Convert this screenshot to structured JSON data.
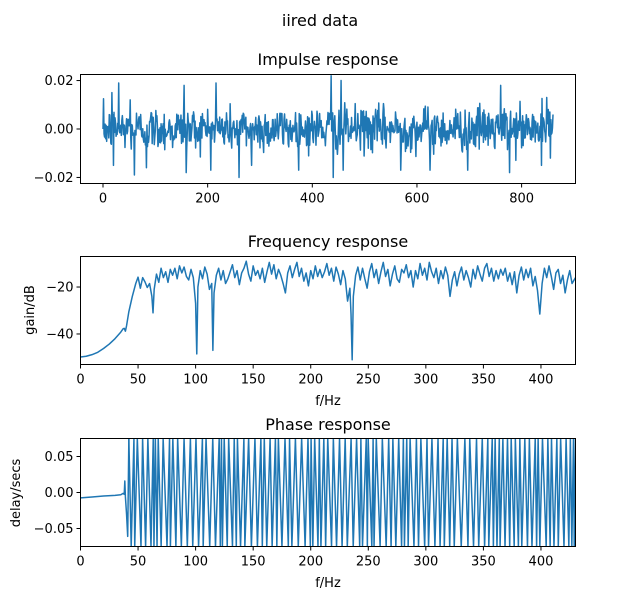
{
  "figure": {
    "suptitle": "iired data"
  },
  "colors": {
    "series": "#1f77b4",
    "axes": "#000000",
    "background": "#ffffff"
  },
  "chart_data": [
    {
      "type": "line",
      "title": "Impulse response",
      "xlabel": "",
      "ylabel": "",
      "xlim": [
        -43,
        903
      ],
      "ylim": [
        -0.0225,
        0.0225
      ],
      "xticks": [
        0,
        200,
        400,
        600,
        800
      ],
      "xtick_labels": [
        "0",
        "200",
        "400",
        "600",
        "800"
      ],
      "yticks": [
        0.02,
        0.0,
        -0.02
      ],
      "ytick_labels": [
        "0.02",
        "0.00",
        "−0.02"
      ],
      "grid": false,
      "x_range": [
        0,
        860
      ],
      "peak_points": [
        [
          0,
          0.0
        ],
        [
          2,
          -0.002
        ],
        [
          4,
          0.002
        ],
        [
          5,
          -0.004
        ],
        [
          17,
          0.015
        ],
        [
          20,
          -0.015
        ],
        [
          30,
          0.019
        ],
        [
          52,
          0.012
        ],
        [
          60,
          -0.019
        ],
        [
          83,
          -0.016
        ],
        [
          155,
          0.018
        ],
        [
          159,
          -0.018
        ],
        [
          216,
          0.019
        ],
        [
          260,
          -0.02
        ],
        [
          284,
          -0.015
        ],
        [
          436,
          0.022
        ],
        [
          440,
          -0.02
        ],
        [
          455,
          0.02
        ],
        [
          459,
          -0.017
        ],
        [
          569,
          -0.017
        ],
        [
          625,
          -0.017
        ],
        [
          697,
          -0.017
        ],
        [
          760,
          0.018
        ],
        [
          777,
          -0.018
        ],
        [
          838,
          -0.015
        ],
        [
          848,
          0.013
        ],
        [
          855,
          -0.012
        ],
        [
          860,
          0.006
        ]
      ],
      "typical_amplitude": 0.0045
    },
    {
      "type": "line",
      "title": "Frequency response",
      "xlabel": "f/Hz",
      "ylabel": "gain/dB",
      "xlim": [
        0,
        430
      ],
      "ylim": [
        -53,
        -7
      ],
      "xticks": [
        0,
        50,
        100,
        150,
        200,
        250,
        300,
        350,
        400
      ],
      "xtick_labels": [
        "0",
        "50",
        "100",
        "150",
        "200",
        "250",
        "300",
        "350",
        "400"
      ],
      "yticks": [
        -20,
        -40
      ],
      "ytick_labels": [
        "−20",
        "−40"
      ],
      "grid": false,
      "points": [
        [
          0,
          -49.8
        ],
        [
          5,
          -49.5
        ],
        [
          10,
          -48.8
        ],
        [
          15,
          -47.8
        ],
        [
          20,
          -46.2
        ],
        [
          25,
          -44.3
        ],
        [
          30,
          -42.0
        ],
        [
          35,
          -39.2
        ],
        [
          37,
          -37.8
        ],
        [
          38,
          -37.6
        ],
        [
          39,
          -38.8
        ],
        [
          40,
          -36.5
        ],
        [
          42,
          -30.5
        ],
        [
          45,
          -24.0
        ],
        [
          48,
          -18.5
        ],
        [
          50,
          -15.8
        ],
        [
          52,
          -20.5
        ],
        [
          54,
          -16.0
        ],
        [
          56,
          -17.8
        ],
        [
          58,
          -20.2
        ],
        [
          60,
          -18.5
        ],
        [
          62,
          -24.0
        ],
        [
          63,
          -31.0
        ],
        [
          64,
          -21.0
        ],
        [
          66,
          -14.5
        ],
        [
          68,
          -18.0
        ],
        [
          70,
          -12.0
        ],
        [
          72,
          -16.0
        ],
        [
          74,
          -13.5
        ],
        [
          76,
          -18.0
        ],
        [
          78,
          -12.5
        ],
        [
          80,
          -15.0
        ],
        [
          82,
          -12.0
        ],
        [
          84,
          -16.5
        ],
        [
          86,
          -11.0
        ],
        [
          88,
          -14.0
        ],
        [
          90,
          -11.5
        ],
        [
          92,
          -15.5
        ],
        [
          94,
          -17.0
        ],
        [
          96,
          -12.5
        ],
        [
          98,
          -16.0
        ],
        [
          100,
          -27.0
        ],
        [
          101,
          -48.5
        ],
        [
          102,
          -20.0
        ],
        [
          104,
          -13.0
        ],
        [
          106,
          -16.5
        ],
        [
          108,
          -11.5
        ],
        [
          110,
          -14.5
        ],
        [
          112,
          -21.0
        ],
        [
          114,
          -18.5
        ],
        [
          115,
          -47.0
        ],
        [
          116,
          -22.5
        ],
        [
          118,
          -15.0
        ],
        [
          120,
          -12.0
        ],
        [
          122,
          -17.0
        ],
        [
          124,
          -13.0
        ],
        [
          126,
          -18.5
        ],
        [
          128,
          -16.5
        ],
        [
          130,
          -13.5
        ],
        [
          132,
          -10.5
        ],
        [
          134,
          -16.0
        ],
        [
          136,
          -13.0
        ],
        [
          138,
          -19.0
        ],
        [
          140,
          -14.0
        ],
        [
          142,
          -12.0
        ],
        [
          144,
          -9.0
        ],
        [
          146,
          -14.5
        ],
        [
          148,
          -17.5
        ],
        [
          150,
          -11.0
        ],
        [
          152,
          -15.0
        ],
        [
          154,
          -13.0
        ],
        [
          156,
          -16.5
        ],
        [
          158,
          -12.0
        ],
        [
          160,
          -18.0
        ],
        [
          162,
          -13.5
        ],
        [
          164,
          -9.5
        ],
        [
          166,
          -14.5
        ],
        [
          168,
          -10.5
        ],
        [
          170,
          -16.5
        ],
        [
          172,
          -12.5
        ],
        [
          174,
          -15.0
        ],
        [
          176,
          -18.5
        ],
        [
          178,
          -22.5
        ],
        [
          180,
          -14.0
        ],
        [
          182,
          -11.0
        ],
        [
          184,
          -16.0
        ],
        [
          186,
          -12.5
        ],
        [
          188,
          -9.5
        ],
        [
          190,
          -15.5
        ],
        [
          192,
          -12.0
        ],
        [
          194,
          -17.5
        ],
        [
          196,
          -14.0
        ],
        [
          198,
          -19.5
        ],
        [
          200,
          -13.0
        ],
        [
          202,
          -16.5
        ],
        [
          204,
          -11.0
        ],
        [
          206,
          -15.5
        ],
        [
          208,
          -12.5
        ],
        [
          210,
          -16.0
        ],
        [
          212,
          -13.5
        ],
        [
          214,
          -10.0
        ],
        [
          216,
          -15.0
        ],
        [
          218,
          -12.0
        ],
        [
          220,
          -17.5
        ],
        [
          222,
          -11.5
        ],
        [
          224,
          -14.5
        ],
        [
          226,
          -19.0
        ],
        [
          228,
          -13.0
        ],
        [
          230,
          -16.5
        ],
        [
          232,
          -26.0
        ],
        [
          234,
          -20.5
        ],
        [
          235,
          -31.5
        ],
        [
          236,
          -51.0
        ],
        [
          237,
          -24.0
        ],
        [
          239,
          -15.0
        ],
        [
          241,
          -11.5
        ],
        [
          243,
          -17.0
        ],
        [
          245,
          -12.0
        ],
        [
          247,
          -16.5
        ],
        [
          249,
          -20.5
        ],
        [
          251,
          -13.5
        ],
        [
          253,
          -10.0
        ],
        [
          255,
          -16.0
        ],
        [
          257,
          -12.5
        ],
        [
          259,
          -18.5
        ],
        [
          261,
          -13.5
        ],
        [
          263,
          -9.5
        ],
        [
          265,
          -15.5
        ],
        [
          267,
          -12.5
        ],
        [
          269,
          -19.5
        ],
        [
          271,
          -14.5
        ],
        [
          273,
          -11.0
        ],
        [
          275,
          -16.5
        ],
        [
          277,
          -18.0
        ],
        [
          279,
          -12.5
        ],
        [
          281,
          -14.0
        ],
        [
          283,
          -10.5
        ],
        [
          285,
          -16.0
        ],
        [
          287,
          -13.0
        ],
        [
          289,
          -20.0
        ],
        [
          291,
          -13.0
        ],
        [
          293,
          -16.5
        ],
        [
          295,
          -10.0
        ],
        [
          297,
          -15.0
        ],
        [
          299,
          -12.0
        ],
        [
          301,
          -17.0
        ],
        [
          303,
          -9.5
        ],
        [
          305,
          -13.5
        ],
        [
          307,
          -16.0
        ],
        [
          309,
          -12.0
        ],
        [
          311,
          -18.5
        ],
        [
          313,
          -13.0
        ],
        [
          315,
          -16.5
        ],
        [
          317,
          -11.5
        ],
        [
          319,
          -15.0
        ],
        [
          321,
          -24.0
        ],
        [
          323,
          -17.0
        ],
        [
          325,
          -13.5
        ],
        [
          327,
          -19.5
        ],
        [
          329,
          -14.5
        ],
        [
          331,
          -11.5
        ],
        [
          333,
          -17.0
        ],
        [
          335,
          -13.0
        ],
        [
          337,
          -16.0
        ],
        [
          339,
          -20.0
        ],
        [
          341,
          -12.5
        ],
        [
          343,
          -16.5
        ],
        [
          345,
          -11.0
        ],
        [
          347,
          -14.5
        ],
        [
          349,
          -17.5
        ],
        [
          351,
          -12.0
        ],
        [
          353,
          -10.0
        ],
        [
          355,
          -15.5
        ],
        [
          357,
          -12.0
        ],
        [
          359,
          -17.5
        ],
        [
          361,
          -13.0
        ],
        [
          363,
          -16.5
        ],
        [
          365,
          -12.5
        ],
        [
          367,
          -15.0
        ],
        [
          369,
          -12.0
        ],
        [
          371,
          -17.5
        ],
        [
          373,
          -14.0
        ],
        [
          375,
          -19.0
        ],
        [
          377,
          -13.5
        ],
        [
          379,
          -22.5
        ],
        [
          381,
          -15.0
        ],
        [
          383,
          -11.5
        ],
        [
          385,
          -17.0
        ],
        [
          387,
          -12.5
        ],
        [
          389,
          -16.0
        ],
        [
          391,
          -12.0
        ],
        [
          393,
          -19.5
        ],
        [
          395,
          -15.5
        ],
        [
          397,
          -21.5
        ],
        [
          399,
          -31.5
        ],
        [
          401,
          -18.5
        ],
        [
          403,
          -12.0
        ],
        [
          405,
          -16.0
        ],
        [
          407,
          -11.0
        ],
        [
          409,
          -15.5
        ],
        [
          411,
          -21.0
        ],
        [
          413,
          -14.0
        ],
        [
          415,
          -12.5
        ],
        [
          417,
          -18.5
        ],
        [
          419,
          -15.0
        ],
        [
          421,
          -22.5
        ],
        [
          423,
          -17.0
        ],
        [
          425,
          -13.0
        ],
        [
          427,
          -18.5
        ],
        [
          430,
          -16.0
        ]
      ]
    },
    {
      "type": "line",
      "title": "Phase response",
      "xlabel": "f/Hz",
      "ylabel": "delay/secs",
      "xlim": [
        0,
        430
      ],
      "ylim": [
        -0.075,
        0.075
      ],
      "xticks": [
        0,
        50,
        100,
        150,
        200,
        250,
        300,
        350,
        400
      ],
      "xtick_labels": [
        "0",
        "50",
        "100",
        "150",
        "200",
        "250",
        "300",
        "350",
        "400"
      ],
      "yticks": [
        0.05,
        0.0,
        -0.05
      ],
      "ytick_labels": [
        "0.05",
        "0.00",
        "−0.05"
      ],
      "grid": false,
      "smooth_points": [
        [
          0,
          -0.0075
        ],
        [
          10,
          -0.0062
        ],
        [
          20,
          -0.0048
        ],
        [
          30,
          -0.004
        ],
        [
          35,
          -0.0032
        ],
        [
          37,
          -0.0012
        ],
        [
          38,
          -0.0025
        ],
        [
          38.5,
          0.016
        ],
        [
          39,
          -0.006
        ],
        [
          40,
          -0.03
        ],
        [
          41,
          -0.061
        ],
        [
          42,
          0.075
        ]
      ],
      "dense_start_hz": 42,
      "dense_end_hz": 430,
      "dense_range": [
        -0.075,
        0.075
      ]
    }
  ]
}
